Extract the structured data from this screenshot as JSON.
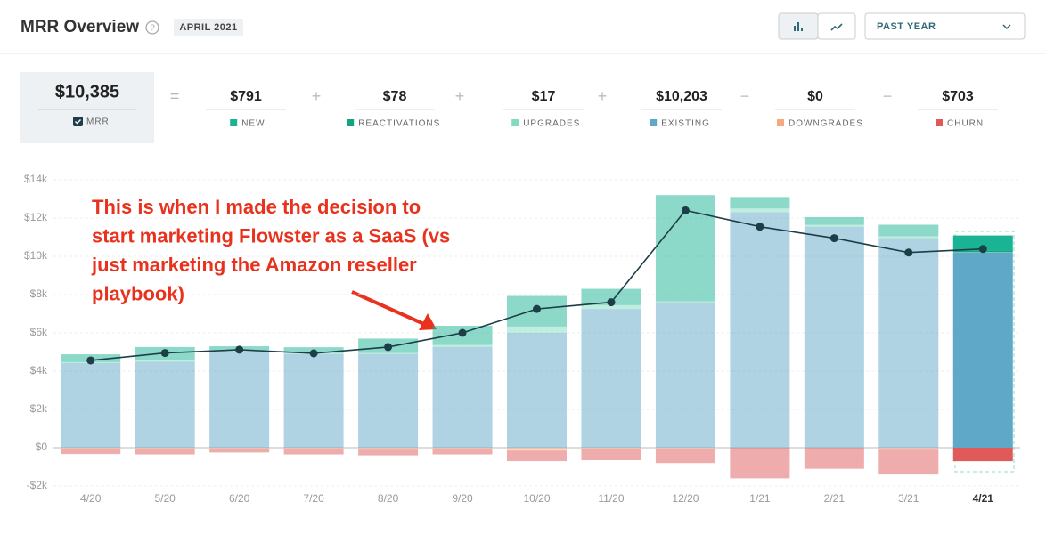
{
  "header": {
    "title": "MRR Overview",
    "period": "APRIL 2021",
    "range": "PAST YEAR"
  },
  "summary": {
    "total": {
      "value": "$10,385",
      "label": "MRR"
    },
    "operators": [
      "=",
      "+",
      "+",
      "+",
      "−",
      "−"
    ],
    "items": [
      {
        "value": "$791",
        "label": "NEW",
        "color": "#1ab394"
      },
      {
        "value": "$78",
        "label": "REACTIVATIONS",
        "color": "#13a383"
      },
      {
        "value": "$17",
        "label": "UPGRADES",
        "color": "#7fdcc0"
      },
      {
        "value": "$10,203",
        "label": "EXISTING",
        "color": "#5fa8c8"
      },
      {
        "value": "$0",
        "label": "DOWNGRADES",
        "color": "#f5a97f"
      },
      {
        "value": "$703",
        "label": "CHURN",
        "color": "#e05a5a"
      }
    ]
  },
  "chart_data": {
    "type": "bar",
    "stacked": true,
    "annotation": [
      "This is when I made the decision to",
      "start marketing Flowster as a SaaS (vs",
      "just marketing the Amazon reseller",
      "playbook)"
    ],
    "categories": [
      "4/20",
      "5/20",
      "6/20",
      "7/20",
      "8/20",
      "9/20",
      "10/20",
      "11/20",
      "12/20",
      "1/21",
      "2/21",
      "3/21",
      "4/21"
    ],
    "series": [
      {
        "name": "EXISTING",
        "color": "#5fa8c8",
        "values": [
          4420,
          4500,
          5050,
          4900,
          4900,
          5270,
          6000,
          7250,
          7600,
          12300,
          11550,
          10950,
          10203
        ]
      },
      {
        "name": "UPGRADES",
        "color": "#7fdcc0",
        "values": [
          50,
          80,
          50,
          50,
          50,
          100,
          330,
          200,
          50,
          200,
          100,
          100,
          17
        ]
      },
      {
        "name": "REACTIVATIONS",
        "color": "#13a383",
        "values": [
          0,
          0,
          0,
          0,
          0,
          0,
          0,
          0,
          0,
          0,
          0,
          0,
          78
        ]
      },
      {
        "name": "NEW",
        "color": "#1ab394",
        "values": [
          410,
          680,
          200,
          300,
          750,
          1000,
          1600,
          850,
          5550,
          600,
          400,
          600,
          791
        ]
      },
      {
        "name": "DOWNGRADES",
        "color": "#f5a97f",
        "values": [
          -50,
          -50,
          -50,
          -50,
          -100,
          -50,
          -150,
          -50,
          -50,
          0,
          0,
          -100,
          0
        ]
      },
      {
        "name": "CHURN",
        "color": "#e05a5a",
        "values": [
          -280,
          -300,
          -200,
          -300,
          -300,
          -300,
          -550,
          -600,
          -750,
          -1600,
          -1100,
          -1300,
          -703
        ]
      }
    ],
    "line": {
      "color": "#1d3d47",
      "values": [
        4560,
        4950,
        5120,
        4930,
        5260,
        6000,
        7250,
        7600,
        12400,
        11550,
        10950,
        10200,
        10385
      ]
    },
    "ylim": [
      -2000,
      14000
    ],
    "yticks": [
      {
        "value": -2000,
        "label": "-$2k"
      },
      {
        "value": 0,
        "label": "$0"
      },
      {
        "value": 2000,
        "label": "$2k"
      },
      {
        "value": 4000,
        "label": "$4k"
      },
      {
        "value": 6000,
        "label": "$6k"
      },
      {
        "value": 8000,
        "label": "$8k"
      },
      {
        "value": 10000,
        "label": "$10k"
      },
      {
        "value": 12000,
        "label": "$12k"
      },
      {
        "value": 14000,
        "label": "$14k"
      }
    ],
    "grid": true
  }
}
